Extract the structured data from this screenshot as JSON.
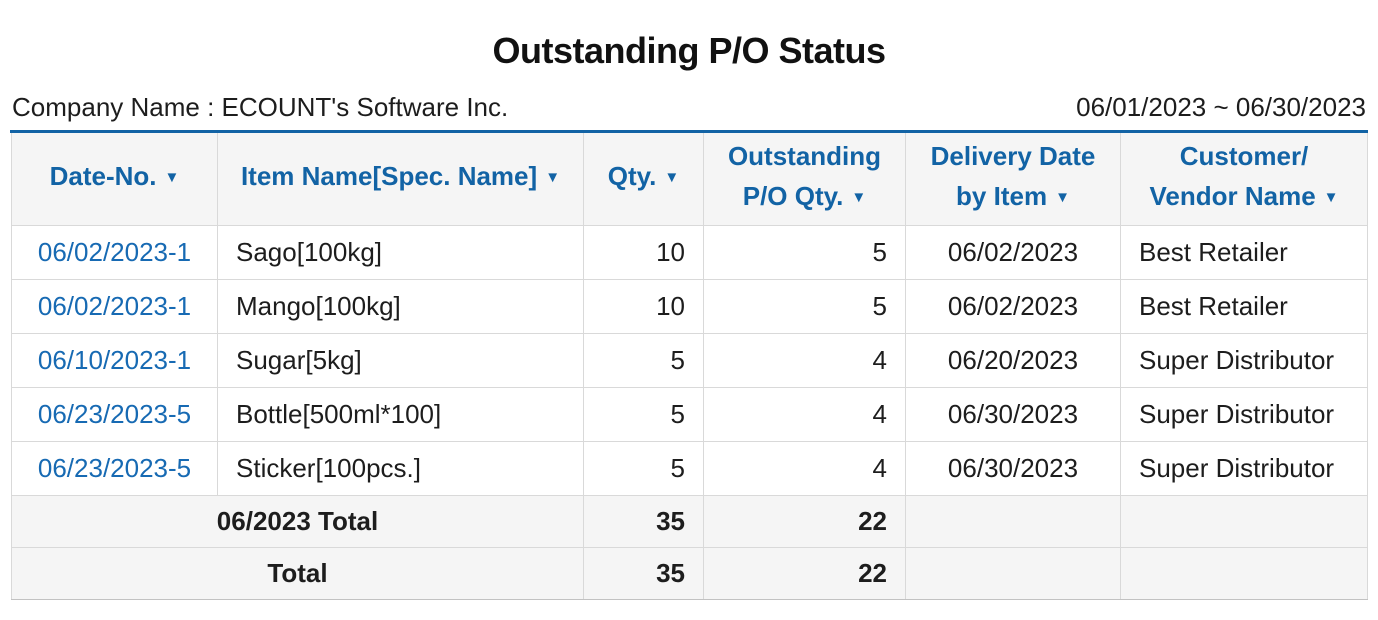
{
  "page": {
    "title": "Outstanding P/O Status",
    "company_name": "Company Name : ECOUNT's Software Inc.",
    "date_range": "06/01/2023 ~ 06/30/2023"
  },
  "icons": {
    "sort_arrow": "▼"
  },
  "colors": {
    "accent_blue": "#1263a5",
    "link_blue": "#176ab3",
    "header_bg": "#f5f5f5",
    "total_row_bg": "#f5f5f5",
    "cell_border": "#d9d9d9"
  },
  "table": {
    "columns": [
      {
        "line1": "Date-No.",
        "line2": ""
      },
      {
        "line1": "Item Name[Spec. Name]",
        "line2": ""
      },
      {
        "line1": "Qty.",
        "line2": ""
      },
      {
        "line1": "Outstanding",
        "line2": "P/O Qty."
      },
      {
        "line1": "Delivery Date",
        "line2": "by Item"
      },
      {
        "line1": "Customer/",
        "line2": "Vendor Name"
      }
    ],
    "rows": [
      {
        "date_no": "06/02/2023-1",
        "item": "Sago[100kg]",
        "qty": "10",
        "outstanding_qty": "5",
        "delivery_date": "06/02/2023",
        "customer": "Best Retailer"
      },
      {
        "date_no": "06/02/2023-1",
        "item": "Mango[100kg]",
        "qty": "10",
        "outstanding_qty": "5",
        "delivery_date": "06/02/2023",
        "customer": "Best Retailer"
      },
      {
        "date_no": "06/10/2023-1",
        "item": "Sugar[5kg]",
        "qty": "5",
        "outstanding_qty": "4",
        "delivery_date": "06/20/2023",
        "customer": "Super Distributor"
      },
      {
        "date_no": "06/23/2023-5",
        "item": "Bottle[500ml*100]",
        "qty": "5",
        "outstanding_qty": "4",
        "delivery_date": "06/30/2023",
        "customer": "Super Distributor"
      },
      {
        "date_no": "06/23/2023-5",
        "item": "Sticker[100pcs.]",
        "qty": "5",
        "outstanding_qty": "4",
        "delivery_date": "06/30/2023",
        "customer": "Super Distributor"
      }
    ],
    "totals": [
      {
        "label": "06/2023 Total",
        "qty": "35",
        "outstanding_qty": "22"
      },
      {
        "label": "Total",
        "qty": "35",
        "outstanding_qty": "22"
      }
    ]
  }
}
